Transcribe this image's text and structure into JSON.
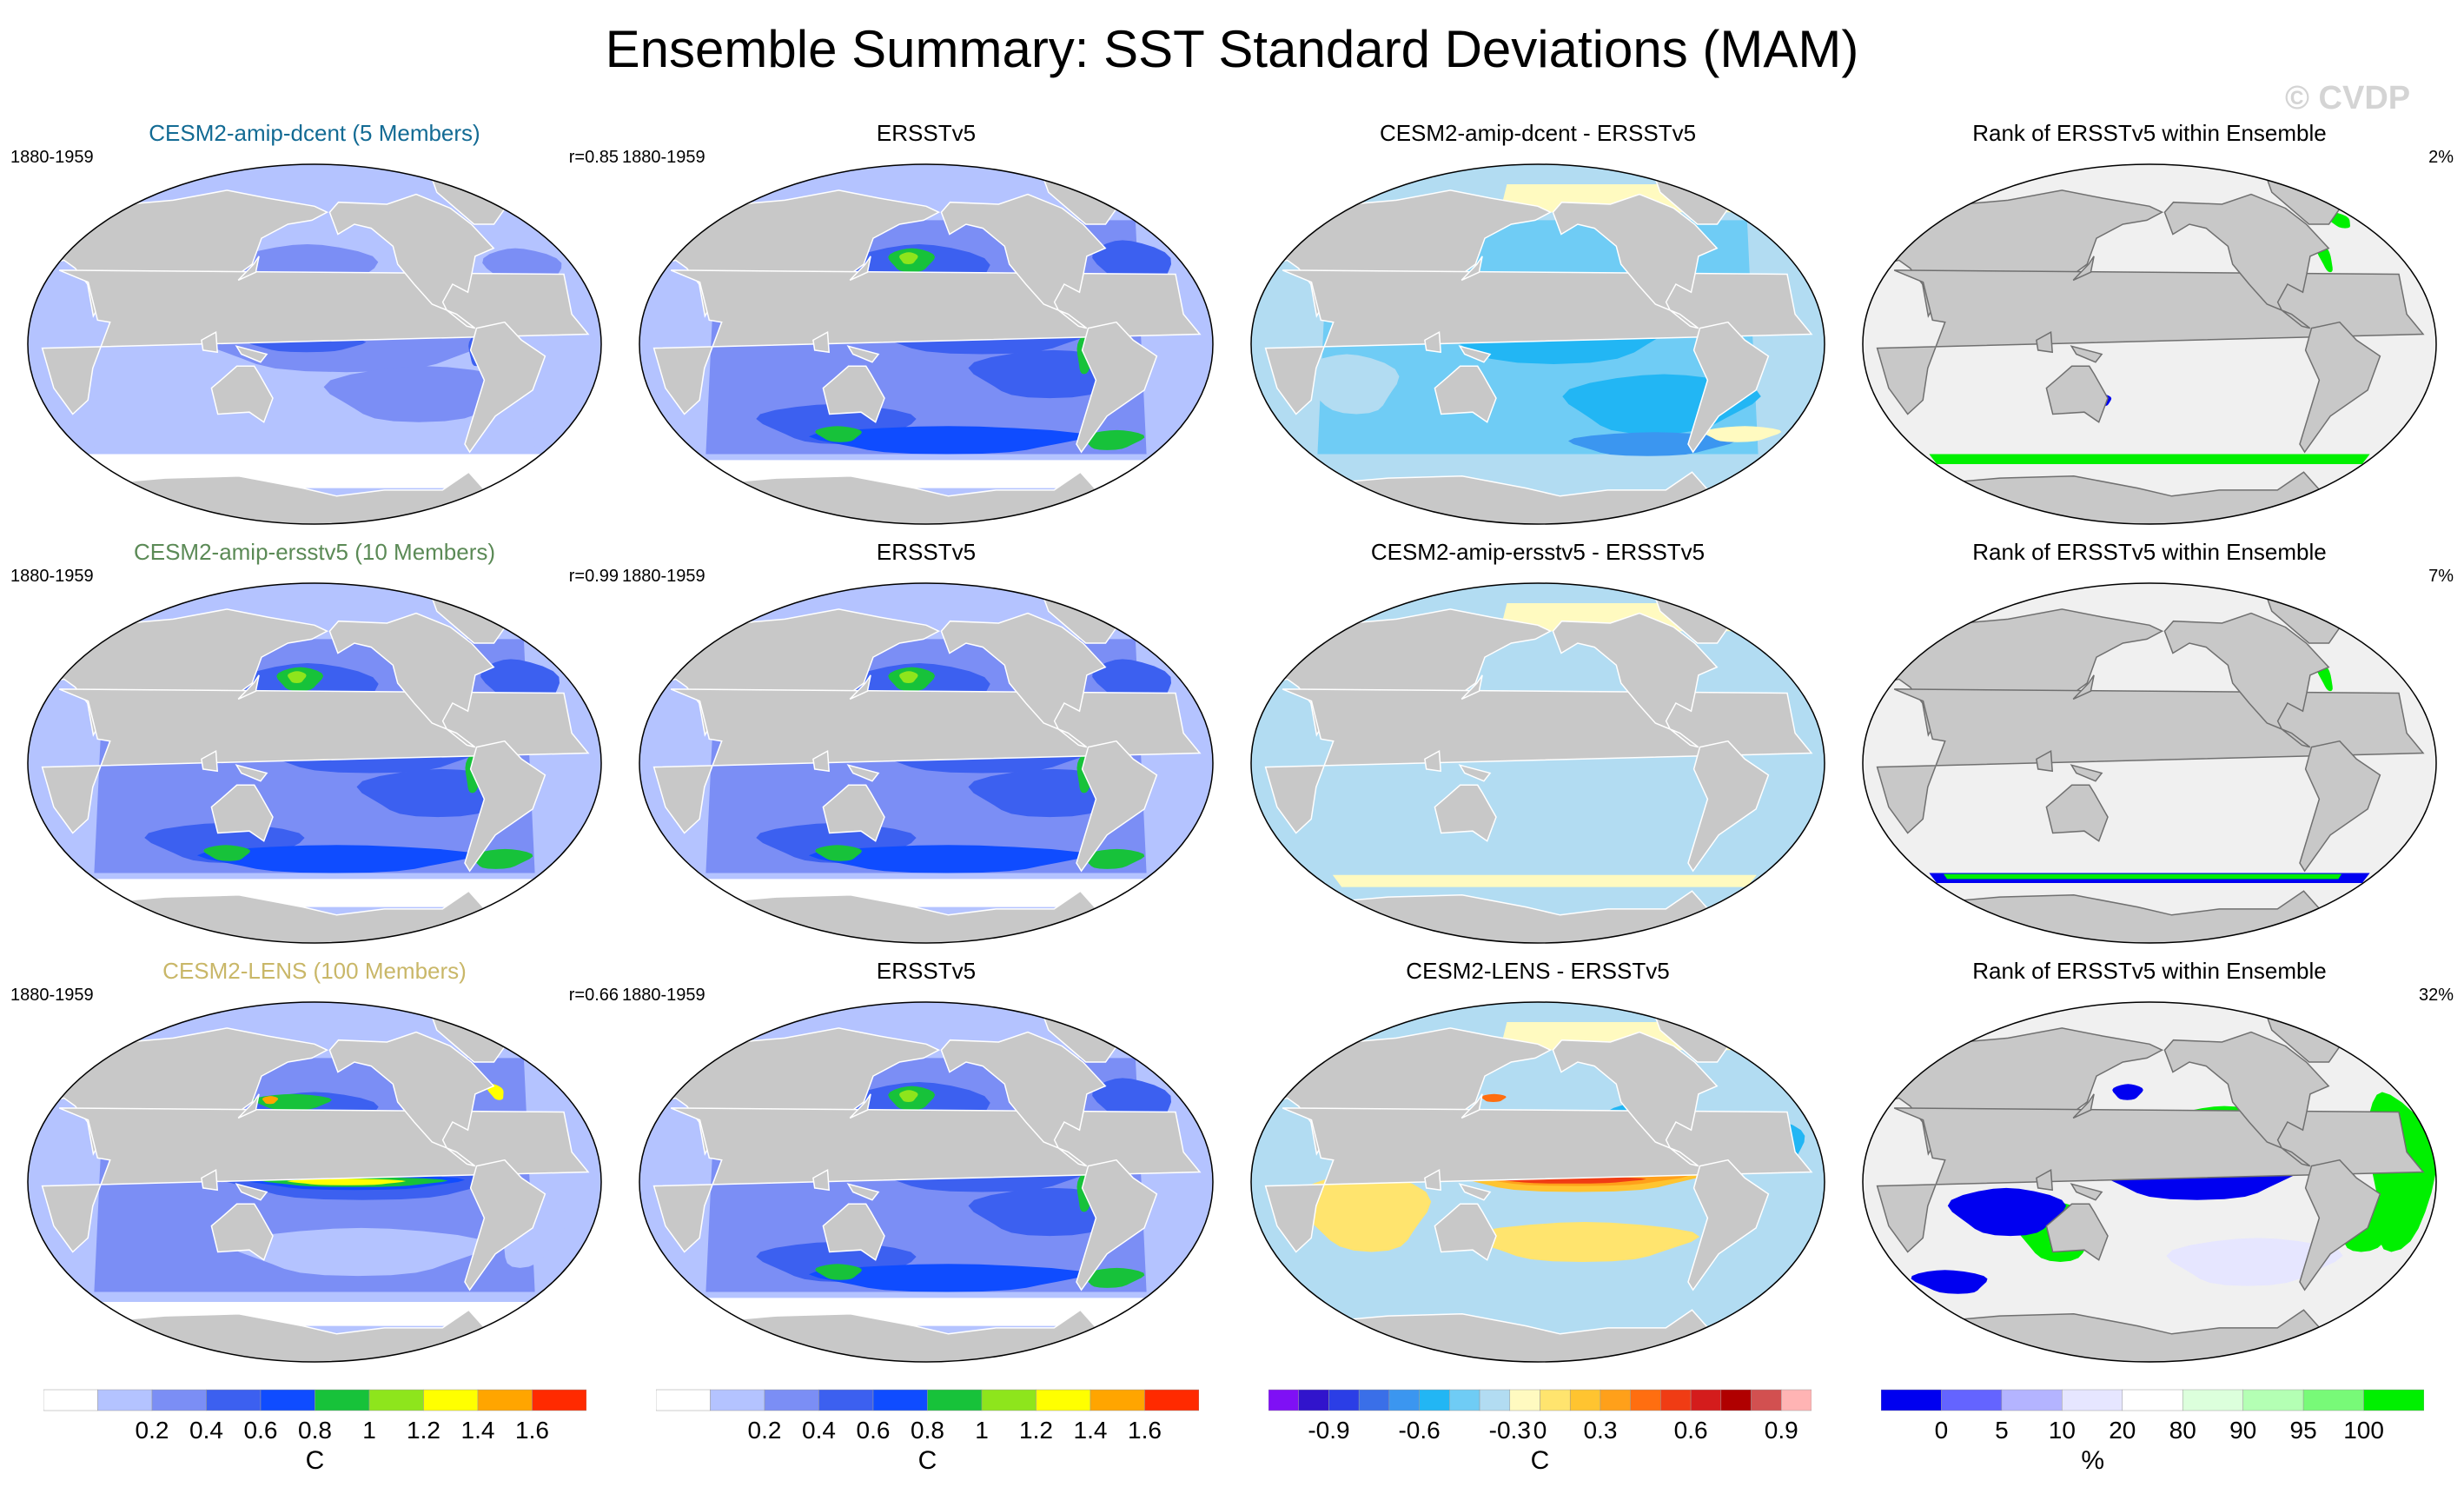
{
  "title": "Ensemble Summary: SST Standard Deviations (MAM)",
  "watermark": "© CVDP",
  "colors": {
    "land": "#c8c8c8",
    "coast": "#ffffff",
    "std": [
      "#ffffff",
      "#b4c3ff",
      "#7b8ef5",
      "#3c60f0",
      "#0f4cff",
      "#17c23a",
      "#8ee51c",
      "#ffff00",
      "#ffa500",
      "#ff2a00"
    ],
    "diff": [
      "#7f10f5",
      "#3114cc",
      "#2b3ee6",
      "#3a6fe8",
      "#3b96f0",
      "#22b6f4",
      "#6fccf5",
      "#b2dcf2",
      "#fffac0",
      "#ffe46e",
      "#ffc430",
      "#ffa01a",
      "#ff6e10",
      "#f03c14",
      "#d41c1c",
      "#b00000",
      "#d25050",
      "#ffb4b4"
    ],
    "rank": [
      "#0000f0",
      "#6464ff",
      "#b4b4ff",
      "#e6e6ff",
      "#ffffff",
      "#dcffdc",
      "#b4ffb4",
      "#78fa78",
      "#00f000"
    ]
  },
  "rows": [
    {
      "panels": [
        {
          "kind": "std",
          "title": "CESM2-amip-dcent (5 Members)",
          "title_color": "#136b94",
          "period": "1880-1959",
          "stat": "r=0.85",
          "field": "std_dcent"
        },
        {
          "kind": "std",
          "title": "ERSSTv5",
          "title_color": "#000000",
          "period": "1880-1959",
          "stat": "",
          "field": "std_obs"
        },
        {
          "kind": "diff",
          "title": "CESM2-amip-dcent - ERSSTv5",
          "title_color": "#000000",
          "period": "",
          "stat": "",
          "field": "diff_dcent"
        },
        {
          "kind": "rank",
          "title": "Rank of ERSSTv5 within Ensemble",
          "title_color": "#000000",
          "period": "",
          "stat": "2%",
          "field": "rank_dcent"
        }
      ]
    },
    {
      "panels": [
        {
          "kind": "std",
          "title": "CESM2-amip-ersstv5 (10 Members)",
          "title_color": "#5b8a56",
          "period": "1880-1959",
          "stat": "r=0.99",
          "field": "std_obs"
        },
        {
          "kind": "std",
          "title": "ERSSTv5",
          "title_color": "#000000",
          "period": "1880-1959",
          "stat": "",
          "field": "std_obs"
        },
        {
          "kind": "diff",
          "title": "CESM2-amip-ersstv5 - ERSSTv5",
          "title_color": "#000000",
          "period": "",
          "stat": "",
          "field": "diff_ersst"
        },
        {
          "kind": "rank",
          "title": "Rank of ERSSTv5 within Ensemble",
          "title_color": "#000000",
          "period": "",
          "stat": "7%",
          "field": "rank_ersst"
        }
      ]
    },
    {
      "panels": [
        {
          "kind": "std",
          "title": "CESM2-LENS (100 Members)",
          "title_color": "#c9b768",
          "period": "1880-1959",
          "stat": "r=0.66",
          "field": "std_lens"
        },
        {
          "kind": "std",
          "title": "ERSSTv5",
          "title_color": "#000000",
          "period": "1880-1959",
          "stat": "",
          "field": "std_obs"
        },
        {
          "kind": "diff",
          "title": "CESM2-LENS - ERSSTv5",
          "title_color": "#000000",
          "period": "",
          "stat": "",
          "field": "diff_lens"
        },
        {
          "kind": "rank",
          "title": "Rank of ERSSTv5 within Ensemble",
          "title_color": "#000000",
          "period": "",
          "stat": "32%",
          "field": "rank_lens"
        }
      ]
    }
  ],
  "colorbars": [
    {
      "kind": "std",
      "labels": [
        "0.2",
        "0.4",
        "0.6",
        "0.8",
        "1",
        "1.2",
        "1.4",
        "1.6"
      ],
      "unit": "C"
    },
    {
      "kind": "std",
      "labels": [
        "0.2",
        "0.4",
        "0.6",
        "0.8",
        "1",
        "1.2",
        "1.4",
        "1.6"
      ],
      "unit": "C"
    },
    {
      "kind": "diff",
      "labels": [
        "-0.9",
        "-0.6",
        "-0.3",
        "0",
        "0.3",
        "0.6",
        "0.9"
      ],
      "unit": "C"
    },
    {
      "kind": "rank",
      "labels": [
        "0",
        "5",
        "10",
        "20",
        "80",
        "90",
        "95",
        "100"
      ],
      "unit": "%"
    }
  ]
}
